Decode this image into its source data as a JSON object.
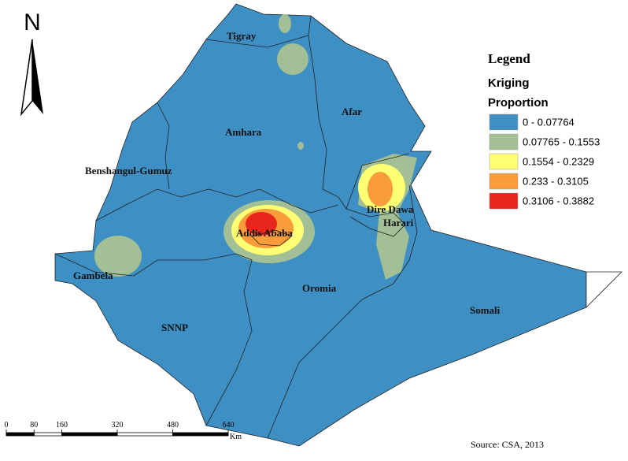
{
  "north_arrow": {
    "label": "N"
  },
  "regions": [
    "Tigray",
    "Afar",
    "Amhara",
    "Benshangul-Gumuz",
    "Addis Ababa",
    "Dire Dawa",
    "Harari",
    "Gambela",
    "Oromia",
    "SNNP",
    "Somali"
  ],
  "legend": {
    "title": "Legend",
    "method": "Kriging",
    "field": "Proportion",
    "items": [
      {
        "label": "0 - 0.07764",
        "color": "#3d8fc4"
      },
      {
        "label": "0.07765 - 0.1553",
        "color": "#a3bf96"
      },
      {
        "label": "0.1554 - 0.2329",
        "color": "#ffff73"
      },
      {
        "label": "0.233 - 0.3105",
        "color": "#f99c3c"
      },
      {
        "label": "0.3106 - 0.3882",
        "color": "#e8261c"
      }
    ]
  },
  "scale_bar": {
    "ticks": [
      0,
      80,
      160,
      320,
      480,
      640
    ],
    "unit": "Km"
  },
  "source": "Source: CSA, 2013"
}
